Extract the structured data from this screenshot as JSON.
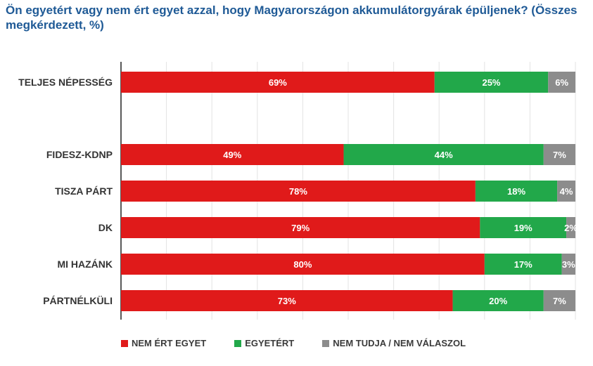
{
  "chart_data": {
    "type": "bar",
    "orientation": "horizontal",
    "stacked": true,
    "title": "Ön egyetért vagy nem ért egyet azzal, hogy Magyarországon akkumulátorgyárak épüljenek? (Összes megkérdezett, %)",
    "categories": [
      "TELJES NÉPESSÉG",
      "FIDESZ-KDNP",
      "TISZA PÁRT",
      "DK",
      "MI HAZÁNK",
      "PÁRTNÉLKÜLI"
    ],
    "series": [
      {
        "name": "NEM ÉRT EGYET",
        "color": "#e01a1a",
        "values": [
          69,
          49,
          78,
          79,
          80,
          73
        ]
      },
      {
        "name": "EGYETÉRT",
        "color": "#22a84a",
        "values": [
          25,
          44,
          18,
          19,
          17,
          20
        ]
      },
      {
        "name": "NEM TUDJA / NEM VÁLASZOL",
        "color": "#8c8c8c",
        "values": [
          6,
          7,
          4,
          2,
          3,
          7
        ]
      }
    ],
    "value_suffix": "%",
    "xlim": [
      0,
      100
    ],
    "grid": true,
    "legend": "bottom"
  }
}
